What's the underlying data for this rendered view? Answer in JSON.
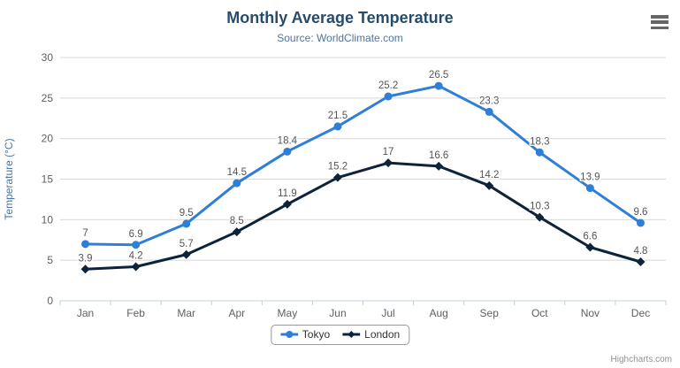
{
  "chart_data": {
    "type": "line",
    "title": "Monthly Average Temperature",
    "subtitle": "Source: WorldClimate.com",
    "xlabel": "",
    "ylabel": "Temperature (°C)",
    "categories": [
      "Jan",
      "Feb",
      "Mar",
      "Apr",
      "May",
      "Jun",
      "Jul",
      "Aug",
      "Sep",
      "Oct",
      "Nov",
      "Dec"
    ],
    "series": [
      {
        "name": "Tokyo",
        "color": "#2f7ed8",
        "marker": "circle",
        "values": [
          7,
          6.9,
          9.5,
          14.5,
          18.4,
          21.5,
          25.2,
          26.5,
          23.3,
          18.3,
          13.9,
          9.6
        ]
      },
      {
        "name": "London",
        "color": "#0d233a",
        "marker": "diamond",
        "values": [
          3.9,
          4.2,
          5.7,
          8.5,
          11.9,
          15.2,
          17,
          16.6,
          14.2,
          10.3,
          6.6,
          4.8
        ]
      }
    ],
    "ylim": [
      0,
      30
    ],
    "ytick_interval": 5,
    "grid": true,
    "data_labels": true,
    "legend_position": "bottom-center"
  },
  "colors": {
    "title": "#274b6d",
    "subtitle": "#4d759e",
    "axis_title": "#4d759e",
    "axis_labels": "#606060",
    "grid_line": "#d8d8d8",
    "axis_line": "#c0d0e0",
    "data_label": "#555555",
    "legend_border": "#999999",
    "legend_text": "#333333",
    "credits": "#909090",
    "menu_icon": "#666666"
  },
  "credits": {
    "label": "Highcharts.com"
  }
}
